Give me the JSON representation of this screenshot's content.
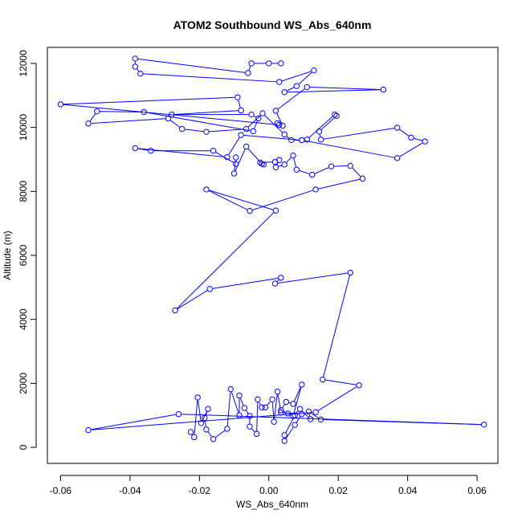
{
  "chart_data": {
    "type": "scatter",
    "title": "ATOM2 Southbound WS_Abs_640nm",
    "xlabel": "WS_Abs_640nm",
    "ylabel": "Altitude (m)",
    "xlim": [
      -0.0638,
      0.066
    ],
    "ylim": [
      -500,
      12500
    ],
    "x_ticks": [
      -0.06,
      -0.04,
      -0.02,
      0.0,
      0.02,
      0.04,
      0.06
    ],
    "x_tick_labels": [
      "-0.06",
      "-0.04",
      "-0.02",
      "0.00",
      "0.02",
      "0.04",
      "0.06"
    ],
    "y_ticks": [
      0,
      2000,
      4000,
      6000,
      8000,
      10000,
      12000
    ],
    "y_tick_labels": [
      "0",
      "2000",
      "4000",
      "6000",
      "8000",
      "10000",
      "12000"
    ],
    "grid": false,
    "marker": "open-circle",
    "connected": true,
    "series_color": "#0000ff",
    "series": [
      {
        "points": [
          [
            0.0035,
            12000
          ],
          [
            0.0,
            12000
          ],
          [
            -0.005,
            12000
          ],
          [
            -0.006,
            11700
          ],
          [
            -0.0385,
            12150
          ],
          [
            -0.0385,
            11900
          ],
          [
            -0.037,
            11680
          ],
          [
            0.003,
            11420
          ],
          [
            0.013,
            11780
          ],
          [
            0.008,
            11290
          ],
          [
            0.0045,
            11100
          ],
          [
            0.033,
            11180
          ],
          [
            0.011,
            11260
          ],
          [
            0.002,
            10520
          ],
          [
            0.004,
            10050
          ],
          [
            0.0025,
            10130
          ],
          [
            0.003,
            10080
          ],
          [
            -0.06,
            10720
          ],
          [
            -0.009,
            10940
          ],
          [
            -0.008,
            10530
          ],
          [
            -0.028,
            10400
          ],
          [
            -0.005,
            10400
          ],
          [
            -0.003,
            10280
          ],
          [
            -0.0045,
            9880
          ],
          [
            -0.036,
            10480
          ],
          [
            -0.0495,
            10500
          ],
          [
            -0.052,
            10120
          ],
          [
            -0.029,
            10280
          ],
          [
            -0.025,
            9950
          ],
          [
            -0.018,
            9860
          ],
          [
            -0.0065,
            9950
          ],
          [
            -0.0018,
            10440
          ],
          [
            0.0045,
            9780
          ],
          [
            0.0065,
            9600
          ],
          [
            0.0095,
            9600
          ],
          [
            0.011,
            9620
          ],
          [
            0.019,
            10400
          ],
          [
            0.0195,
            10360
          ],
          [
            0.0145,
            9870
          ],
          [
            0.015,
            9620
          ],
          [
            0.037,
            9990
          ],
          [
            0.041,
            9680
          ],
          [
            0.045,
            9560
          ],
          [
            0.037,
            9040
          ],
          [
            0.0095,
            9600
          ],
          [
            -0.008,
            9760
          ],
          [
            -0.012,
            9070
          ],
          [
            -0.0385,
            9350
          ],
          [
            -0.034,
            9270
          ],
          [
            -0.016,
            9270
          ],
          [
            -0.0095,
            8860
          ],
          [
            -0.0095,
            9060
          ],
          [
            -0.01,
            8560
          ],
          [
            -0.0065,
            9400
          ],
          [
            -0.002,
            8860
          ],
          [
            -0.0015,
            8840
          ],
          [
            -0.0025,
            8900
          ],
          [
            0.0018,
            8920
          ],
          [
            0.003,
            8980
          ],
          [
            0.002,
            8750
          ],
          [
            0.0045,
            8840
          ],
          [
            0.007,
            9120
          ],
          [
            0.008,
            8680
          ],
          [
            0.0125,
            8520
          ],
          [
            0.018,
            8780
          ],
          [
            0.0235,
            8800
          ],
          [
            0.027,
            8400
          ],
          [
            0.0135,
            8060
          ],
          [
            -0.0055,
            7390
          ],
          [
            -0.018,
            8060
          ],
          [
            0.002,
            7400
          ],
          [
            -0.027,
            4280
          ],
          [
            -0.017,
            4950
          ],
          [
            0.0035,
            5300
          ],
          [
            0.0018,
            5120
          ],
          [
            0.0235,
            5460
          ],
          [
            0.0155,
            2120
          ],
          [
            0.026,
            1940
          ],
          [
            0.0135,
            1100
          ],
          [
            -0.052,
            540
          ],
          [
            -0.026,
            1040
          ],
          [
            0.062,
            710
          ],
          [
            0.015,
            870
          ],
          [
            0.0115,
            1120
          ],
          [
            0.012,
            880
          ],
          [
            0.009,
            1200
          ],
          [
            0.007,
            980
          ],
          [
            0.0095,
            1960
          ],
          [
            0.007,
            1360
          ],
          [
            0.005,
            1420
          ],
          [
            0.0035,
            1160
          ],
          [
            0.0055,
            1060
          ],
          [
            0.0075,
            1000
          ],
          [
            0.0045,
            380
          ],
          [
            0.0045,
            200
          ],
          [
            0.0075,
            700
          ],
          [
            0.0095,
            1040
          ],
          [
            0.0035,
            1090
          ],
          [
            0.0025,
            1740
          ],
          [
            0.0015,
            800
          ],
          [
            0.001,
            1500
          ],
          [
            -0.001,
            1250
          ],
          [
            -0.002,
            1250
          ],
          [
            -0.0032,
            1500
          ],
          [
            -0.0035,
            420
          ],
          [
            -0.0055,
            650
          ],
          [
            -0.0055,
            980
          ],
          [
            -0.007,
            1230
          ],
          [
            -0.0085,
            1620
          ],
          [
            -0.0085,
            1000
          ],
          [
            -0.011,
            1820
          ],
          [
            -0.012,
            580
          ],
          [
            -0.016,
            260
          ],
          [
            -0.018,
            560
          ],
          [
            -0.0185,
            920
          ],
          [
            -0.0175,
            1200
          ],
          [
            -0.0195,
            760
          ],
          [
            -0.0205,
            1560
          ],
          [
            -0.0215,
            320
          ],
          [
            -0.0225,
            480
          ]
        ]
      }
    ]
  }
}
